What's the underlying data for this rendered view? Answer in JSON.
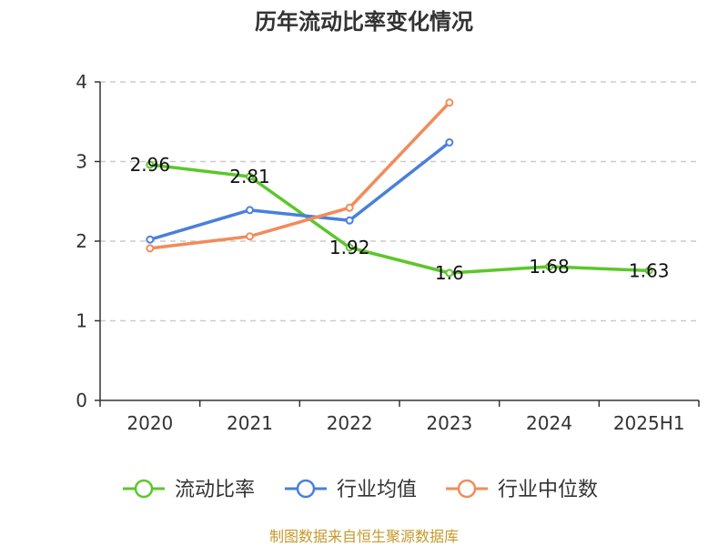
{
  "chart_data": {
    "type": "line",
    "title": "历年流动比率变化情况",
    "categories": [
      "2020",
      "2021",
      "2022",
      "2023",
      "2024",
      "2025H1"
    ],
    "y_ticks": [
      "0",
      "1",
      "2",
      "3",
      "4"
    ],
    "ylim": [
      0,
      4
    ],
    "grid": true,
    "legend_position": "bottom",
    "series": [
      {
        "name": "流动比率",
        "color": "#5BC72B",
        "values": [
          2.96,
          2.81,
          1.92,
          1.6,
          1.68,
          1.63
        ],
        "labels": [
          "2.96",
          "2.81",
          "1.92",
          "1.6",
          "1.68",
          "1.63"
        ]
      },
      {
        "name": "行业均值",
        "color": "#4A7FDB",
        "values": [
          2.02,
          2.39,
          2.26,
          3.24,
          null,
          null
        ]
      },
      {
        "name": "行业中位数",
        "color": "#F28B5B",
        "values": [
          1.91,
          2.06,
          2.42,
          3.74,
          null,
          null
        ]
      }
    ]
  },
  "source_text": "制图数据来自恒生聚源数据库",
  "source_color": "#C49A2C"
}
